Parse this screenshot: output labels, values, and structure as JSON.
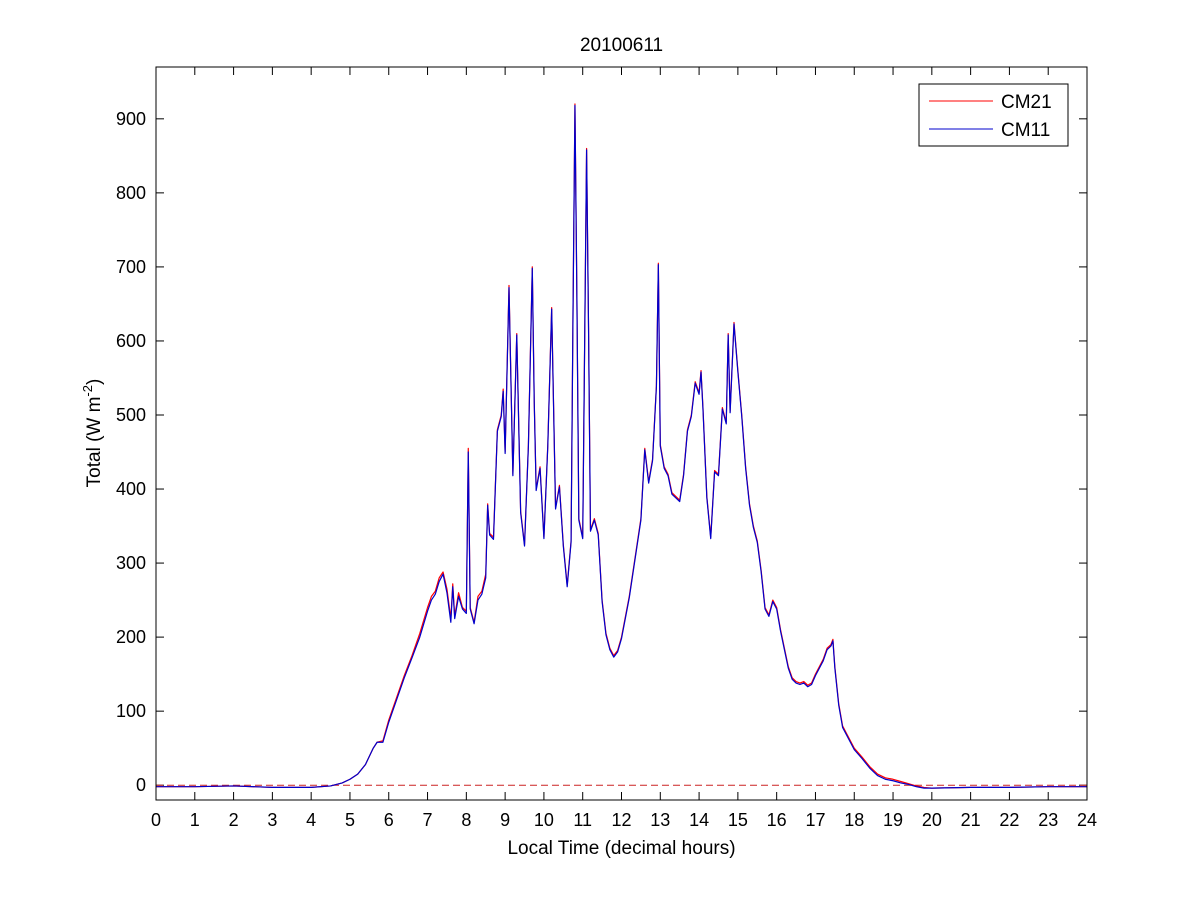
{
  "chart_data": {
    "type": "line",
    "title": "20100611",
    "xlabel": "Local Time (decimal hours)",
    "ylabel_main": "Total (W m",
    "ylabel_sup": "-2",
    "ylabel_close": ")",
    "xlim": [
      0,
      24
    ],
    "ylim": [
      -20,
      970
    ],
    "xticks": [
      0,
      1,
      2,
      3,
      4,
      5,
      6,
      7,
      8,
      9,
      10,
      11,
      12,
      13,
      14,
      15,
      16,
      17,
      18,
      19,
      20,
      21,
      22,
      23,
      24
    ],
    "yticks": [
      0,
      100,
      200,
      300,
      400,
      500,
      600,
      700,
      800,
      900
    ],
    "grid": false,
    "legend_position": "top-right",
    "colors": {
      "CM21": "#ff0000",
      "CM11": "#0000cc",
      "zero_line": "#cc2222"
    },
    "reference_line": {
      "y": 0,
      "style": "dashed"
    },
    "series": [
      {
        "name": "CM21",
        "color": "#ff0000",
        "points": [
          [
            0,
            -2
          ],
          [
            1,
            -2
          ],
          [
            2,
            -1
          ],
          [
            3,
            -3
          ],
          [
            4,
            -3
          ],
          [
            4.5,
            -1
          ],
          [
            4.8,
            3
          ],
          [
            5.0,
            8
          ],
          [
            5.2,
            15
          ],
          [
            5.4,
            28
          ],
          [
            5.6,
            50
          ],
          [
            5.7,
            58
          ],
          [
            5.85,
            60
          ],
          [
            6.0,
            88
          ],
          [
            6.2,
            118
          ],
          [
            6.4,
            148
          ],
          [
            6.6,
            175
          ],
          [
            6.8,
            205
          ],
          [
            7.0,
            240
          ],
          [
            7.1,
            255
          ],
          [
            7.2,
            262
          ],
          [
            7.3,
            280
          ],
          [
            7.4,
            288
          ],
          [
            7.5,
            265
          ],
          [
            7.6,
            225
          ],
          [
            7.65,
            272
          ],
          [
            7.7,
            228
          ],
          [
            7.8,
            260
          ],
          [
            7.9,
            240
          ],
          [
            8.0,
            235
          ],
          [
            8.05,
            455
          ],
          [
            8.1,
            240
          ],
          [
            8.2,
            220
          ],
          [
            8.3,
            255
          ],
          [
            8.4,
            262
          ],
          [
            8.5,
            285
          ],
          [
            8.55,
            380
          ],
          [
            8.6,
            340
          ],
          [
            8.7,
            335
          ],
          [
            8.8,
            480
          ],
          [
            8.9,
            500
          ],
          [
            8.95,
            535
          ],
          [
            9.0,
            450
          ],
          [
            9.1,
            675
          ],
          [
            9.2,
            420
          ],
          [
            9.3,
            610
          ],
          [
            9.4,
            370
          ],
          [
            9.5,
            325
          ],
          [
            9.6,
            460
          ],
          [
            9.7,
            700
          ],
          [
            9.75,
            520
          ],
          [
            9.8,
            400
          ],
          [
            9.9,
            430
          ],
          [
            10.0,
            335
          ],
          [
            10.1,
            460
          ],
          [
            10.2,
            645
          ],
          [
            10.3,
            375
          ],
          [
            10.4,
            405
          ],
          [
            10.5,
            325
          ],
          [
            10.6,
            270
          ],
          [
            10.7,
            330
          ],
          [
            10.75,
            640
          ],
          [
            10.8,
            920
          ],
          [
            10.85,
            660
          ],
          [
            10.9,
            360
          ],
          [
            11.0,
            335
          ],
          [
            11.1,
            860
          ],
          [
            11.15,
            620
          ],
          [
            11.2,
            345
          ],
          [
            11.3,
            360
          ],
          [
            11.4,
            340
          ],
          [
            11.5,
            250
          ],
          [
            11.6,
            205
          ],
          [
            11.7,
            185
          ],
          [
            11.8,
            175
          ],
          [
            11.9,
            182
          ],
          [
            12.0,
            200
          ],
          [
            12.2,
            255
          ],
          [
            12.4,
            325
          ],
          [
            12.5,
            360
          ],
          [
            12.6,
            455
          ],
          [
            12.7,
            410
          ],
          [
            12.8,
            440
          ],
          [
            12.9,
            540
          ],
          [
            12.95,
            705
          ],
          [
            13.0,
            460
          ],
          [
            13.1,
            430
          ],
          [
            13.2,
            420
          ],
          [
            13.3,
            395
          ],
          [
            13.5,
            385
          ],
          [
            13.6,
            420
          ],
          [
            13.7,
            480
          ],
          [
            13.8,
            500
          ],
          [
            13.9,
            545
          ],
          [
            14.0,
            530
          ],
          [
            14.05,
            560
          ],
          [
            14.1,
            510
          ],
          [
            14.2,
            390
          ],
          [
            14.3,
            335
          ],
          [
            14.4,
            425
          ],
          [
            14.5,
            420
          ],
          [
            14.6,
            510
          ],
          [
            14.7,
            490
          ],
          [
            14.75,
            610
          ],
          [
            14.8,
            505
          ],
          [
            14.9,
            625
          ],
          [
            15.0,
            560
          ],
          [
            15.1,
            500
          ],
          [
            15.2,
            430
          ],
          [
            15.3,
            380
          ],
          [
            15.4,
            350
          ],
          [
            15.5,
            330
          ],
          [
            15.6,
            290
          ],
          [
            15.7,
            240
          ],
          [
            15.8,
            230
          ],
          [
            15.9,
            250
          ],
          [
            16.0,
            240
          ],
          [
            16.1,
            210
          ],
          [
            16.2,
            185
          ],
          [
            16.3,
            160
          ],
          [
            16.4,
            145
          ],
          [
            16.5,
            140
          ],
          [
            16.6,
            138
          ],
          [
            16.7,
            140
          ],
          [
            16.8,
            135
          ],
          [
            16.9,
            138
          ],
          [
            17.0,
            150
          ],
          [
            17.2,
            170
          ],
          [
            17.3,
            185
          ],
          [
            17.4,
            190
          ],
          [
            17.45,
            197
          ],
          [
            17.5,
            160
          ],
          [
            17.6,
            110
          ],
          [
            17.7,
            80
          ],
          [
            17.8,
            70
          ],
          [
            17.9,
            60
          ],
          [
            18.0,
            50
          ],
          [
            18.2,
            38
          ],
          [
            18.4,
            25
          ],
          [
            18.6,
            15
          ],
          [
            18.8,
            10
          ],
          [
            19.0,
            8
          ],
          [
            19.2,
            5
          ],
          [
            19.4,
            2
          ],
          [
            19.6,
            -1
          ],
          [
            19.8,
            -3
          ],
          [
            20,
            -4
          ],
          [
            21,
            -3
          ],
          [
            22,
            -3
          ],
          [
            23,
            -2
          ],
          [
            24,
            -2
          ]
        ]
      },
      {
        "name": "CM11",
        "color": "#0000cc",
        "points": [
          [
            0,
            -2
          ],
          [
            1,
            -2
          ],
          [
            2,
            -1
          ],
          [
            3,
            -3
          ],
          [
            4,
            -3
          ],
          [
            4.5,
            -1
          ],
          [
            4.8,
            3
          ],
          [
            5.0,
            8
          ],
          [
            5.2,
            15
          ],
          [
            5.4,
            28
          ],
          [
            5.6,
            50
          ],
          [
            5.7,
            58
          ],
          [
            5.85,
            58
          ],
          [
            6.0,
            85
          ],
          [
            6.2,
            115
          ],
          [
            6.4,
            145
          ],
          [
            6.6,
            172
          ],
          [
            6.8,
            200
          ],
          [
            7.0,
            235
          ],
          [
            7.1,
            250
          ],
          [
            7.2,
            258
          ],
          [
            7.3,
            275
          ],
          [
            7.4,
            285
          ],
          [
            7.5,
            260
          ],
          [
            7.6,
            220
          ],
          [
            7.65,
            268
          ],
          [
            7.7,
            225
          ],
          [
            7.8,
            255
          ],
          [
            7.9,
            238
          ],
          [
            8.0,
            232
          ],
          [
            8.05,
            450
          ],
          [
            8.1,
            238
          ],
          [
            8.2,
            218
          ],
          [
            8.3,
            250
          ],
          [
            8.4,
            258
          ],
          [
            8.5,
            280
          ],
          [
            8.55,
            378
          ],
          [
            8.6,
            338
          ],
          [
            8.7,
            332
          ],
          [
            8.8,
            478
          ],
          [
            8.9,
            498
          ],
          [
            8.95,
            532
          ],
          [
            9.0,
            448
          ],
          [
            9.1,
            672
          ],
          [
            9.2,
            418
          ],
          [
            9.3,
            608
          ],
          [
            9.4,
            368
          ],
          [
            9.5,
            323
          ],
          [
            9.6,
            458
          ],
          [
            9.7,
            698
          ],
          [
            9.75,
            518
          ],
          [
            9.8,
            398
          ],
          [
            9.9,
            428
          ],
          [
            10.0,
            333
          ],
          [
            10.1,
            458
          ],
          [
            10.2,
            643
          ],
          [
            10.3,
            373
          ],
          [
            10.4,
            403
          ],
          [
            10.5,
            323
          ],
          [
            10.6,
            268
          ],
          [
            10.7,
            328
          ],
          [
            10.75,
            638
          ],
          [
            10.8,
            918
          ],
          [
            10.85,
            658
          ],
          [
            10.9,
            358
          ],
          [
            11.0,
            333
          ],
          [
            11.1,
            858
          ],
          [
            11.15,
            618
          ],
          [
            11.2,
            343
          ],
          [
            11.3,
            358
          ],
          [
            11.4,
            338
          ],
          [
            11.5,
            248
          ],
          [
            11.6,
            203
          ],
          [
            11.7,
            183
          ],
          [
            11.8,
            173
          ],
          [
            11.9,
            180
          ],
          [
            12.0,
            198
          ],
          [
            12.2,
            253
          ],
          [
            12.4,
            323
          ],
          [
            12.5,
            358
          ],
          [
            12.6,
            453
          ],
          [
            12.7,
            408
          ],
          [
            12.8,
            438
          ],
          [
            12.9,
            538
          ],
          [
            12.95,
            703
          ],
          [
            13.0,
            458
          ],
          [
            13.1,
            428
          ],
          [
            13.2,
            418
          ],
          [
            13.3,
            393
          ],
          [
            13.5,
            383
          ],
          [
            13.6,
            418
          ],
          [
            13.7,
            478
          ],
          [
            13.8,
            498
          ],
          [
            13.9,
            543
          ],
          [
            14.0,
            528
          ],
          [
            14.05,
            558
          ],
          [
            14.1,
            508
          ],
          [
            14.2,
            388
          ],
          [
            14.3,
            333
          ],
          [
            14.4,
            423
          ],
          [
            14.5,
            418
          ],
          [
            14.6,
            508
          ],
          [
            14.7,
            488
          ],
          [
            14.75,
            608
          ],
          [
            14.8,
            503
          ],
          [
            14.9,
            623
          ],
          [
            15.0,
            558
          ],
          [
            15.1,
            498
          ],
          [
            15.2,
            428
          ],
          [
            15.3,
            378
          ],
          [
            15.4,
            348
          ],
          [
            15.5,
            328
          ],
          [
            15.6,
            288
          ],
          [
            15.7,
            238
          ],
          [
            15.8,
            228
          ],
          [
            15.9,
            248
          ],
          [
            16.0,
            238
          ],
          [
            16.1,
            208
          ],
          [
            16.2,
            183
          ],
          [
            16.3,
            158
          ],
          [
            16.4,
            143
          ],
          [
            16.5,
            138
          ],
          [
            16.6,
            136
          ],
          [
            16.7,
            138
          ],
          [
            16.8,
            133
          ],
          [
            16.9,
            136
          ],
          [
            17.0,
            148
          ],
          [
            17.2,
            168
          ],
          [
            17.3,
            183
          ],
          [
            17.4,
            188
          ],
          [
            17.45,
            195
          ],
          [
            17.5,
            158
          ],
          [
            17.6,
            108
          ],
          [
            17.7,
            78
          ],
          [
            17.8,
            68
          ],
          [
            17.9,
            58
          ],
          [
            18.0,
            48
          ],
          [
            18.2,
            36
          ],
          [
            18.4,
            23
          ],
          [
            18.6,
            13
          ],
          [
            18.8,
            8
          ],
          [
            19.0,
            6
          ],
          [
            19.2,
            3
          ],
          [
            19.4,
            1
          ],
          [
            19.6,
            -2
          ],
          [
            19.8,
            -4
          ],
          [
            20,
            -4
          ],
          [
            21,
            -3
          ],
          [
            22,
            -3
          ],
          [
            23,
            -2
          ],
          [
            24,
            -2
          ]
        ]
      }
    ]
  }
}
